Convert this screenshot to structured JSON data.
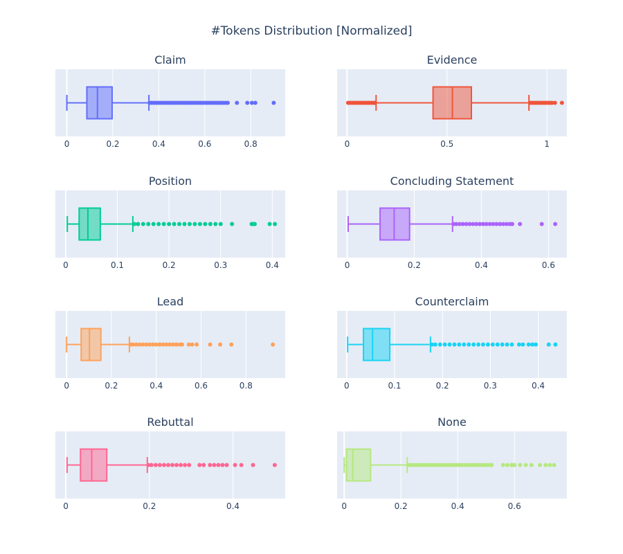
{
  "chart_data": {
    "type": "box",
    "title": "#Tokens Distribution [Normalized]",
    "plot_background": "#e5ecf6",
    "subplots": [
      {
        "name": "Claim",
        "color": "#636efa",
        "xticks": [
          0,
          0.2,
          0.4,
          0.6,
          0.8
        ],
        "xtick_labels": [
          "0",
          "0.2",
          "0.4",
          "0.6",
          "0.8"
        ],
        "xlim": [
          -0.05,
          0.95
        ],
        "box": {
          "lower_fence": 0.0,
          "q1": 0.087,
          "median": 0.133,
          "q3": 0.197,
          "upper_fence": 0.357
        },
        "outliers": [
          0.36,
          0.37,
          0.38,
          0.39,
          0.4,
          0.41,
          0.42,
          0.43,
          0.44,
          0.45,
          0.46,
          0.47,
          0.48,
          0.49,
          0.5,
          0.51,
          0.52,
          0.53,
          0.54,
          0.55,
          0.56,
          0.57,
          0.58,
          0.59,
          0.6,
          0.61,
          0.62,
          0.63,
          0.64,
          0.65,
          0.66,
          0.67,
          0.68,
          0.69,
          0.7,
          0.74,
          0.785,
          0.805,
          0.82,
          0.9
        ]
      },
      {
        "name": "Evidence",
        "color": "#ef553b",
        "xticks": [
          0,
          0.5,
          1
        ],
        "xtick_labels": [
          "0",
          "0.5",
          "1"
        ],
        "xlim": [
          -0.05,
          1.1
        ],
        "box": {
          "lower_fence": 0.145,
          "q1": 0.43,
          "median": 0.527,
          "q3": 0.622,
          "upper_fence": 0.91
        },
        "outliers": [
          0.005,
          0.015,
          0.025,
          0.035,
          0.045,
          0.055,
          0.065,
          0.075,
          0.085,
          0.095,
          0.105,
          0.115,
          0.125,
          0.135,
          0.14,
          0.915,
          0.925,
          0.935,
          0.945,
          0.955,
          0.965,
          0.975,
          0.985,
          0.995,
          1.005,
          1.015,
          1.025,
          1.04,
          1.075
        ]
      },
      {
        "name": "Position",
        "color": "#00cc96",
        "xticks": [
          0,
          0.1,
          0.2,
          0.3,
          0.4
        ],
        "xtick_labels": [
          "0",
          "0.1",
          "0.2",
          "0.3",
          "0.4"
        ],
        "xlim": [
          -0.02,
          0.425
        ],
        "box": {
          "lower_fence": 0.003,
          "q1": 0.026,
          "median": 0.043,
          "q3": 0.067,
          "upper_fence": 0.13
        },
        "outliers": [
          0.133,
          0.14,
          0.15,
          0.16,
          0.17,
          0.18,
          0.19,
          0.2,
          0.21,
          0.22,
          0.23,
          0.24,
          0.25,
          0.26,
          0.27,
          0.28,
          0.29,
          0.3,
          0.322,
          0.36,
          0.363,
          0.366,
          0.395,
          0.405
        ]
      },
      {
        "name": "Concluding Statement",
        "color": "#ab63fa",
        "xticks": [
          0,
          0.2,
          0.4,
          0.6
        ],
        "xtick_labels": [
          "0",
          "0.2",
          "0.4",
          "0.6"
        ],
        "xlim": [
          -0.03,
          0.655
        ],
        "box": {
          "lower_fence": 0.003,
          "q1": 0.098,
          "median": 0.14,
          "q3": 0.186,
          "upper_fence": 0.314
        },
        "outliers": [
          0.317,
          0.325,
          0.335,
          0.345,
          0.355,
          0.365,
          0.375,
          0.385,
          0.395,
          0.405,
          0.415,
          0.425,
          0.435,
          0.445,
          0.455,
          0.465,
          0.475,
          0.485,
          0.492,
          0.515,
          0.58,
          0.62
        ]
      },
      {
        "name": "Lead",
        "color": "#ffa15a",
        "xticks": [
          0,
          0.2,
          0.4,
          0.6,
          0.8
        ],
        "xtick_labels": [
          "0",
          "0.2",
          "0.4",
          "0.6",
          "0.8"
        ],
        "xlim": [
          -0.05,
          0.975
        ],
        "box": {
          "lower_fence": 0.0,
          "q1": 0.065,
          "median": 0.102,
          "q3": 0.153,
          "upper_fence": 0.28
        },
        "outliers": [
          0.285,
          0.295,
          0.31,
          0.325,
          0.34,
          0.355,
          0.37,
          0.385,
          0.4,
          0.415,
          0.43,
          0.445,
          0.46,
          0.475,
          0.49,
          0.505,
          0.515,
          0.545,
          0.56,
          0.58,
          0.64,
          0.685,
          0.735,
          0.92
        ]
      },
      {
        "name": "Counterclaim",
        "color": "#19d3f3",
        "xticks": [
          0,
          0.1,
          0.2,
          0.3,
          0.4
        ],
        "xtick_labels": [
          "0",
          "0.1",
          "0.2",
          "0.3",
          "0.4"
        ],
        "xlim": [
          -0.02,
          0.46
        ],
        "box": {
          "lower_fence": 0.002,
          "q1": 0.035,
          "median": 0.054,
          "q3": 0.09,
          "upper_fence": 0.175
        },
        "outliers": [
          0.178,
          0.185,
          0.195,
          0.205,
          0.215,
          0.225,
          0.235,
          0.245,
          0.255,
          0.265,
          0.275,
          0.285,
          0.295,
          0.305,
          0.315,
          0.325,
          0.335,
          0.345,
          0.36,
          0.368,
          0.38,
          0.388,
          0.395,
          0.422,
          0.436
        ]
      },
      {
        "name": "Rebuttal",
        "color": "#ff6692",
        "xticks": [
          0,
          0.2,
          0.4
        ],
        "xtick_labels": [
          "0",
          "0.2",
          "0.4"
        ],
        "xlim": [
          -0.025,
          0.525
        ],
        "box": {
          "lower_fence": 0.003,
          "q1": 0.035,
          "median": 0.062,
          "q3": 0.098,
          "upper_fence": 0.195
        },
        "outliers": [
          0.198,
          0.205,
          0.215,
          0.225,
          0.235,
          0.245,
          0.255,
          0.265,
          0.275,
          0.285,
          0.295,
          0.32,
          0.33,
          0.345,
          0.355,
          0.365,
          0.375,
          0.385,
          0.405,
          0.42,
          0.448,
          0.5
        ]
      },
      {
        "name": "None",
        "color": "#b6e880",
        "xticks": [
          0,
          0.2,
          0.4,
          0.6
        ],
        "xtick_labels": [
          "0",
          "0.2",
          "0.4",
          "0.6"
        ],
        "xlim": [
          -0.025,
          0.785
        ],
        "box": {
          "lower_fence": 0.0,
          "q1": 0.008,
          "median": 0.03,
          "q3": 0.093,
          "upper_fence": 0.222
        },
        "outliers": [
          0.225,
          0.235,
          0.245,
          0.255,
          0.265,
          0.275,
          0.285,
          0.295,
          0.305,
          0.315,
          0.325,
          0.335,
          0.345,
          0.355,
          0.365,
          0.375,
          0.385,
          0.395,
          0.405,
          0.415,
          0.425,
          0.435,
          0.445,
          0.455,
          0.465,
          0.475,
          0.485,
          0.495,
          0.505,
          0.515,
          0.52,
          0.56,
          0.575,
          0.59,
          0.6,
          0.62,
          0.64,
          0.66,
          0.69,
          0.71,
          0.725,
          0.74
        ]
      }
    ]
  }
}
